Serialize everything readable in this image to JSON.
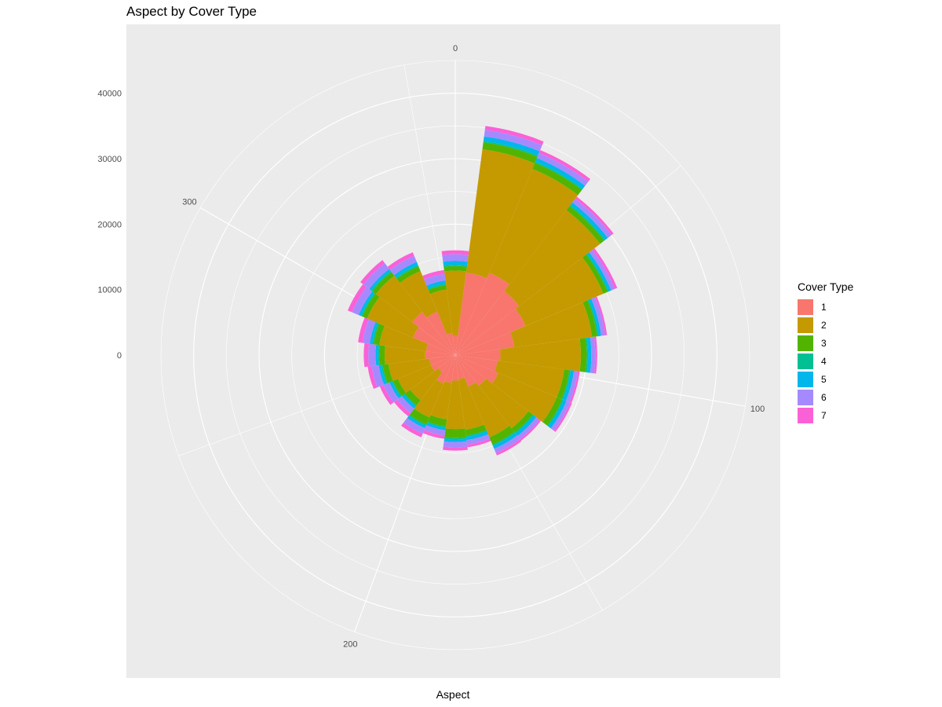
{
  "chart_data": {
    "type": "bar",
    "coord": "polar",
    "title": "Aspect by Cover Type",
    "xlabel": "Aspect",
    "ylabel": "",
    "x_axis_labels": [
      "0",
      "100",
      "200",
      "300"
    ],
    "y_axis_labels": [
      "0",
      "10000",
      "20000",
      "30000",
      "40000"
    ],
    "x_range": [
      0,
      360
    ],
    "bin_width": 15,
    "ylim": [
      0,
      45000
    ],
    "stacked": true,
    "categories": [
      0,
      15,
      30,
      45,
      60,
      75,
      90,
      105,
      120,
      135,
      150,
      165,
      180,
      195,
      210,
      225,
      240,
      255,
      270,
      285,
      300,
      315,
      330,
      345
    ],
    "series": [
      {
        "name": "1",
        "color": "#F8766D",
        "values": [
          2900,
          12700,
          13600,
          12300,
          11600,
          9100,
          6900,
          6500,
          7100,
          5900,
          5200,
          3700,
          3900,
          4300,
          4700,
          3300,
          4000,
          4000,
          4600,
          4500,
          7000,
          8300,
          7200,
          3400
        ]
      },
      {
        "name": "2",
        "color": "#C49A00",
        "values": [
          10000,
          19000,
          17200,
          15600,
          12900,
          12000,
          12300,
          10300,
          9700,
          8200,
          8400,
          7800,
          7400,
          5600,
          5600,
          5400,
          5500,
          6300,
          6200,
          7200,
          7600,
          7000,
          6700,
          6700
        ]
      },
      {
        "name": "3",
        "color": "#53B400",
        "values": [
          700,
          1100,
          1000,
          800,
          700,
          800,
          900,
          800,
          900,
          800,
          1200,
          900,
          1400,
          1100,
          1200,
          1000,
          800,
          900,
          800,
          900,
          800,
          700,
          800,
          700
        ]
      },
      {
        "name": "4",
        "color": "#00C094",
        "values": [
          200,
          200,
          200,
          200,
          200,
          200,
          200,
          200,
          200,
          200,
          200,
          200,
          200,
          200,
          200,
          200,
          200,
          200,
          200,
          200,
          200,
          200,
          200,
          200
        ]
      },
      {
        "name": "5",
        "color": "#00B6EB",
        "values": [
          600,
          700,
          600,
          500,
          400,
          400,
          500,
          500,
          500,
          500,
          500,
          500,
          400,
          400,
          400,
          400,
          400,
          400,
          400,
          400,
          400,
          400,
          500,
          500
        ]
      },
      {
        "name": "6",
        "color": "#A58AFF",
        "values": [
          1000,
          1000,
          800,
          700,
          600,
          600,
          600,
          600,
          600,
          600,
          700,
          700,
          800,
          800,
          900,
          900,
          1000,
          1100,
          1100,
          1100,
          1100,
          1100,
          1000,
          1000
        ]
      },
      {
        "name": "7",
        "color": "#FB61D7",
        "values": [
          600,
          600,
          500,
          400,
          400,
          300,
          300,
          300,
          300,
          300,
          400,
          400,
          500,
          500,
          600,
          600,
          600,
          600,
          700,
          700,
          700,
          600,
          600,
          600
        ]
      }
    ],
    "legend_title": "Cover Type",
    "legend_position": "right",
    "grid": true,
    "panel_color": "#EBEBEB",
    "grid_color": "#FFFFFF"
  }
}
